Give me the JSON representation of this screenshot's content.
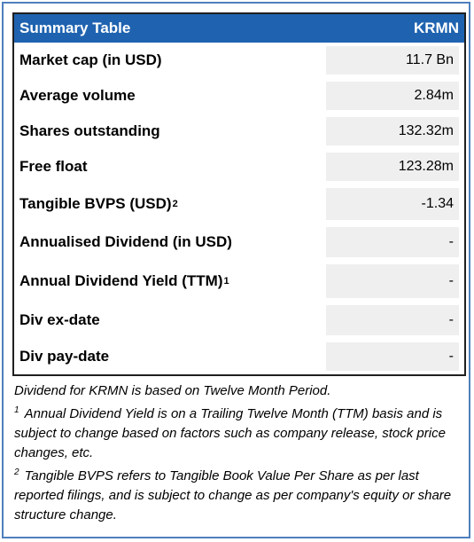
{
  "table": {
    "header_left": "Summary Table",
    "header_right": "KRMN",
    "rows": [
      {
        "label": "Market cap (in USD)",
        "sup": "",
        "value": "11.7 Bn"
      },
      {
        "label": "Average volume",
        "sup": "",
        "value": "2.84m"
      },
      {
        "label": "Shares outstanding",
        "sup": "",
        "value": "132.32m"
      },
      {
        "label": "Free float",
        "sup": "",
        "value": "123.28m"
      },
      {
        "label": "Tangible BVPS (USD)",
        "sup": "2",
        "value": "-1.34"
      },
      {
        "label": "Annualised Dividend (in USD)",
        "sup": "",
        "value": "-"
      },
      {
        "label": "Annual Dividend Yield (TTM)",
        "sup": "1",
        "value": "-"
      },
      {
        "label": "Div ex-date",
        "sup": "",
        "value": "-"
      },
      {
        "label": "Div pay-date",
        "sup": "",
        "value": "-"
      }
    ]
  },
  "notes": {
    "basis": "Dividend for KRMN is based on Twelve Month Period.",
    "note1_mark": "1",
    "note1": "Annual Dividend Yield is on a Trailing Twelve Month (TTM) basis and is subject to change based on factors such as company release, stock price changes, etc.",
    "note2_mark": "2",
    "note2": "Tangible BVPS refers to Tangible Book Value Per Share as per last reported filings, and is subject to change as per company's equity or share structure change."
  },
  "colors": {
    "header_bg": "#1f63b0",
    "value_bg": "#efefef",
    "frame_border": "#4f7fbd"
  }
}
